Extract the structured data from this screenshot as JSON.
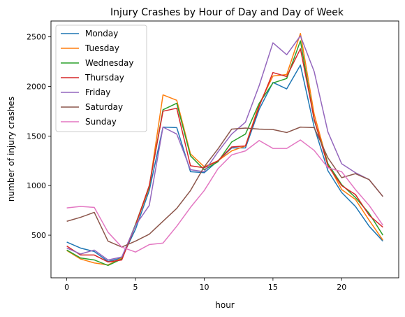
{
  "chart_data": {
    "type": "line",
    "title": "Injury Crashes by Hour of Day and Day of Week",
    "xlabel": "hour",
    "ylabel": "number of injury crashes",
    "xlim": [
      -1.15,
      24.15
    ],
    "ylim": [
      70,
      2660
    ],
    "xticks": [
      0,
      5,
      10,
      15,
      20
    ],
    "yticks": [
      500,
      1000,
      1500,
      2000,
      2500
    ],
    "grid": false,
    "legend_position": "top-left",
    "x": [
      0,
      1,
      2,
      3,
      4,
      5,
      6,
      7,
      8,
      9,
      10,
      11,
      12,
      13,
      14,
      15,
      16,
      17,
      18,
      19,
      20,
      21,
      22,
      23
    ],
    "series": [
      {
        "name": "Monday",
        "color": "#1f77b4",
        "values": [
          430,
          370,
          335,
          235,
          270,
          560,
          950,
          1590,
          1585,
          1140,
          1130,
          1250,
          1380,
          1380,
          1770,
          2040,
          1975,
          2215,
          1590,
          1150,
          930,
          790,
          590,
          440
        ]
      },
      {
        "name": "Tuesday",
        "color": "#ff7f0e",
        "values": [
          345,
          260,
          220,
          200,
          270,
          600,
          980,
          1915,
          1860,
          1320,
          1190,
          1250,
          1350,
          1400,
          1820,
          2105,
          2120,
          2535,
          1720,
          1220,
          960,
          860,
          650,
          450
        ]
      },
      {
        "name": "Wednesday",
        "color": "#2ca02c",
        "values": [
          350,
          270,
          250,
          195,
          260,
          610,
          990,
          1765,
          1830,
          1300,
          1160,
          1240,
          1440,
          1520,
          1830,
          2035,
          2080,
          2460,
          1660,
          1220,
          1010,
          880,
          720,
          500
        ]
      },
      {
        "name": "Thursday",
        "color": "#d62728",
        "values": [
          390,
          300,
          300,
          230,
          250,
          600,
          1000,
          1750,
          1780,
          1200,
          1180,
          1250,
          1390,
          1400,
          1800,
          2140,
          2100,
          2380,
          1670,
          1200,
          1000,
          910,
          700,
          580
        ]
      },
      {
        "name": "Friday",
        "color": "#9467bd",
        "values": [
          370,
          310,
          350,
          250,
          280,
          600,
          800,
          1590,
          1520,
          1160,
          1140,
          1340,
          1520,
          1640,
          2010,
          2440,
          2320,
          2510,
          2150,
          1540,
          1220,
          1130,
          1060,
          890
        ]
      },
      {
        "name": "Saturday",
        "color": "#8c564b",
        "values": [
          640,
          680,
          730,
          440,
          380,
          440,
          510,
          640,
          770,
          950,
          1190,
          1370,
          1570,
          1580,
          1570,
          1565,
          1535,
          1590,
          1585,
          1280,
          1080,
          1120,
          1060,
          890
        ]
      },
      {
        "name": "Sunday",
        "color": "#e377c2",
        "values": [
          775,
          790,
          780,
          530,
          380,
          330,
          405,
          420,
          590,
          780,
          950,
          1170,
          1310,
          1350,
          1455,
          1375,
          1375,
          1460,
          1355,
          1180,
          1140,
          960,
          800,
          600
        ]
      }
    ]
  }
}
